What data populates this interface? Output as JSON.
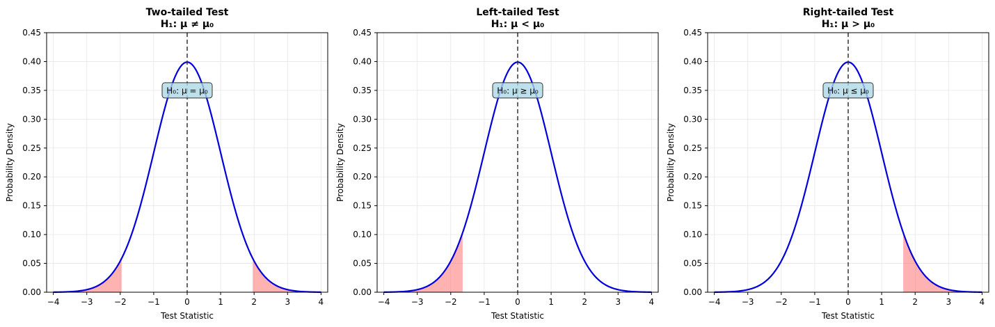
{
  "chart_data": [
    {
      "type": "line",
      "title": "Two-tailed Test",
      "subtitle": "H₁: μ ≠ μ₀",
      "xlabel": "Test Statistic",
      "ylabel": "Probability Density",
      "xlim": [
        -4.2,
        4.2
      ],
      "ylim": [
        0,
        0.45
      ],
      "xticks": [
        "−4",
        "−3",
        "−2",
        "−1",
        "0",
        "1",
        "2",
        "3",
        "4"
      ],
      "yticks": [
        "0.00",
        "0.05",
        "0.10",
        "0.15",
        "0.20",
        "0.25",
        "0.30",
        "0.35",
        "0.40",
        "0.45"
      ],
      "grid": true,
      "series": [
        {
          "x": [
            -4,
            -3.5,
            -3,
            -2.5,
            -2,
            -1.5,
            -1,
            -0.5,
            0,
            0.5,
            1,
            1.5,
            2,
            2.5,
            3,
            3.5,
            4
          ],
          "y": [
            0.0001,
            0.0009,
            0.0044,
            0.0175,
            0.054,
            0.1295,
            0.242,
            0.3521,
            0.3989,
            0.3521,
            0.242,
            0.1295,
            0.054,
            0.0175,
            0.0044,
            0.0009,
            0.0001
          ],
          "color": "#0000dd"
        }
      ],
      "shaded_regions": [
        {
          "from": -4,
          "to": -1.96,
          "color": "#ff6666"
        },
        {
          "from": 1.96,
          "to": 4,
          "color": "#ff6666"
        }
      ],
      "vline": {
        "x": 0
      },
      "annotation": {
        "text": "H₀: μ = μ₀",
        "x": 0,
        "y": 0.35
      }
    },
    {
      "type": "line",
      "title": "Left-tailed Test",
      "subtitle": "H₁: μ < μ₀",
      "xlabel": "Test Statistic",
      "ylabel": "Probability Density",
      "xlim": [
        -4.2,
        4.2
      ],
      "ylim": [
        0,
        0.45
      ],
      "xticks": [
        "−4",
        "−3",
        "−2",
        "−1",
        "0",
        "1",
        "2",
        "3",
        "4"
      ],
      "yticks": [
        "0.00",
        "0.05",
        "0.10",
        "0.15",
        "0.20",
        "0.25",
        "0.30",
        "0.35",
        "0.40",
        "0.45"
      ],
      "grid": true,
      "series": [
        {
          "x": [
            -4,
            -3.5,
            -3,
            -2.5,
            -2,
            -1.5,
            -1,
            -0.5,
            0,
            0.5,
            1,
            1.5,
            2,
            2.5,
            3,
            3.5,
            4
          ],
          "y": [
            0.0001,
            0.0009,
            0.0044,
            0.0175,
            0.054,
            0.1295,
            0.242,
            0.3521,
            0.3989,
            0.3521,
            0.242,
            0.1295,
            0.054,
            0.0175,
            0.0044,
            0.0009,
            0.0001
          ],
          "color": "#0000dd"
        }
      ],
      "shaded_regions": [
        {
          "from": -4,
          "to": -1.645,
          "color": "#ff6666"
        }
      ],
      "vline": {
        "x": 0
      },
      "annotation": {
        "text": "H₀: μ ≥ μ₀",
        "x": 0,
        "y": 0.35
      }
    },
    {
      "type": "line",
      "title": "Right-tailed Test",
      "subtitle": "H₁: μ > μ₀",
      "xlabel": "Test Statistic",
      "ylabel": "Probability Density",
      "xlim": [
        -4.2,
        4.2
      ],
      "ylim": [
        0,
        0.45
      ],
      "xticks": [
        "−4",
        "−3",
        "−2",
        "−1",
        "0",
        "1",
        "2",
        "3",
        "4"
      ],
      "yticks": [
        "0.00",
        "0.05",
        "0.10",
        "0.15",
        "0.20",
        "0.25",
        "0.30",
        "0.35",
        "0.40",
        "0.45"
      ],
      "grid": true,
      "series": [
        {
          "x": [
            -4,
            -3.5,
            -3,
            -2.5,
            -2,
            -1.5,
            -1,
            -0.5,
            0,
            0.5,
            1,
            1.5,
            2,
            2.5,
            3,
            3.5,
            4
          ],
          "y": [
            0.0001,
            0.0009,
            0.0044,
            0.0175,
            0.054,
            0.1295,
            0.242,
            0.3521,
            0.3989,
            0.3521,
            0.242,
            0.1295,
            0.054,
            0.0175,
            0.0044,
            0.0009,
            0.0001
          ],
          "color": "#0000dd"
        }
      ],
      "shaded_regions": [
        {
          "from": 1.645,
          "to": 4,
          "color": "#ff6666"
        }
      ],
      "vline": {
        "x": 0
      },
      "annotation": {
        "text": "H₀: μ ≤ μ₀",
        "x": 0,
        "y": 0.35
      }
    }
  ]
}
